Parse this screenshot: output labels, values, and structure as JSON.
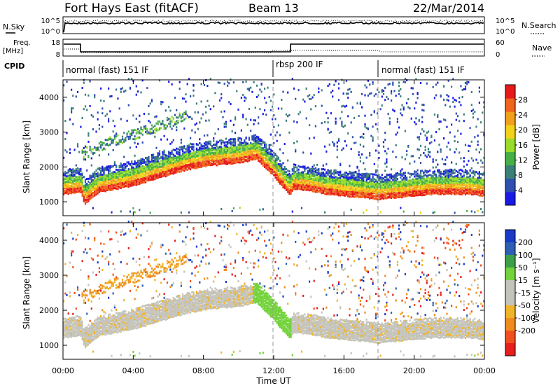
{
  "header": {
    "station": "Fort Hays East (fitACF)",
    "beam": "Beam 13",
    "date": "22/Mar/2014"
  },
  "small_panels": {
    "nsky_label": "N.Sky",
    "nsearch_label": "N.Search",
    "nsky_ticks": [
      "10^5",
      "10^0"
    ],
    "nsearch_ticks": [
      "10^5",
      "10^0"
    ],
    "freq_label_1": "Freq.",
    "freq_label_2": "[MHz]",
    "freq_ticks": [
      "18",
      "8"
    ],
    "nave_label": "Nave",
    "nave_ticks": [
      "60",
      "0"
    ],
    "cpid_label": "CPID",
    "cpid_segments": [
      {
        "label": "normal (fast) 151 IF",
        "start_h": 0,
        "end_h": 13
      },
      {
        "label": "rbsp 200 IF",
        "start_h": 13,
        "end_h": 18
      },
      {
        "label": "normal (fast) 151 IF",
        "start_h": 18,
        "end_h": 24
      }
    ]
  },
  "colors": {
    "power_scale": [
      "#1a1ae6",
      "#2e4fb0",
      "#3a7f78",
      "#46b046",
      "#9adc2a",
      "#f0d21a",
      "#f2a01c",
      "#f0641c",
      "#e61a1a"
    ],
    "velocity_scale": [
      "#1a3ac8",
      "#2e5fb4",
      "#3ca048",
      "#74d23c",
      "#c4c4bc",
      "#c4c4bc",
      "#f0b428",
      "#f08c1e",
      "#f0501e",
      "#e61e1e"
    ],
    "dashed_line": "#999999"
  },
  "chart_data": [
    {
      "type": "heatmap",
      "name": "power-panel",
      "xlabel": "Time UT",
      "ylabel": "Slant Range [km]",
      "xlim": [
        0,
        24
      ],
      "ylim": [
        600,
        4500
      ],
      "x_ticks": [
        "00:00",
        "04:00",
        "08:00",
        "12:00",
        "16:00",
        "20:00",
        "00:00"
      ],
      "y_ticks": [
        1000,
        2000,
        3000,
        4000
      ],
      "colorbar": {
        "label": "Power [dB]",
        "ticks": [
          "4",
          "8",
          "12",
          "16",
          "20",
          "24",
          "28"
        ],
        "min": 0,
        "max": 32
      },
      "main_echo_range_km": {
        "hours": [
          0,
          1,
          1.2,
          2,
          3,
          4,
          5,
          6,
          7,
          8,
          9,
          10,
          11,
          12,
          12.9,
          13.1,
          14,
          15,
          16,
          17,
          18,
          19,
          20,
          21,
          22,
          23,
          24
        ],
        "range": [
          1200,
          1250,
          900,
          1250,
          1350,
          1450,
          1600,
          1750,
          1900,
          2000,
          2050,
          2100,
          2200,
          1700,
          1150,
          1350,
          1300,
          1200,
          1150,
          1100,
          1050,
          1100,
          1150,
          1200,
          1200,
          1200,
          1150
        ]
      },
      "upper_echo_range_km": {
        "hours": [
          1,
          2,
          3,
          4,
          5,
          6,
          7
        ],
        "range": [
          2300,
          2550,
          2750,
          2900,
          3050,
          3250,
          3450
        ]
      }
    },
    {
      "type": "heatmap",
      "name": "velocity-panel",
      "xlabel": "Time UT",
      "ylabel": "Slant Range [km]",
      "xlim": [
        0,
        24
      ],
      "ylim": [
        600,
        4500
      ],
      "x_ticks": [
        "00:00",
        "04:00",
        "08:00",
        "12:00",
        "16:00",
        "20:00",
        "00:00"
      ],
      "y_ticks": [
        1000,
        2000,
        3000,
        4000
      ],
      "colorbar": {
        "label": "Velocity [m s⁻¹]",
        "ticks": [
          "200",
          "100",
          "50",
          "15",
          "-15",
          "-50",
          "-100",
          "-200"
        ]
      }
    }
  ]
}
